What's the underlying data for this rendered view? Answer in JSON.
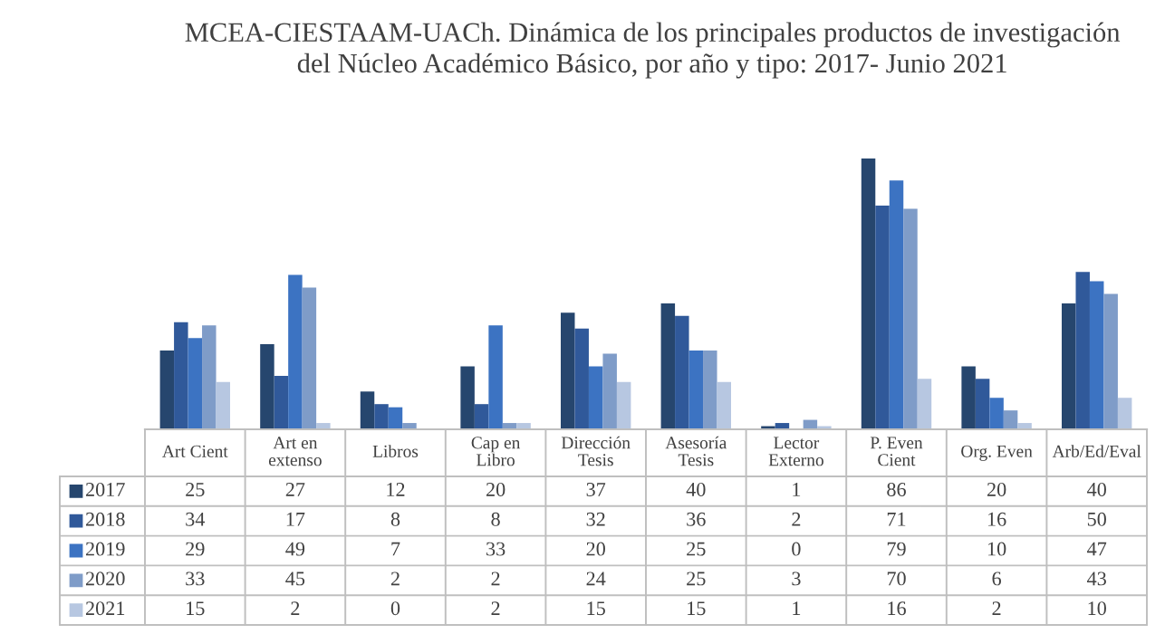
{
  "chart_data": {
    "type": "bar",
    "title": "MCEA-CIESTAAM-UACh. Dinámica de los principales productos de investigación\ndel Núcleo Académico Básico, por año y tipo: 2017- Junio 2021",
    "categories": [
      "Art Cient",
      "Art en extenso",
      "Libros",
      "Cap en Libro",
      "Dirección Tesis",
      "Asesoría Tesis",
      "Lector Externo",
      "P. Even Cient",
      "Org. Even",
      "Arb/Ed/Eval"
    ],
    "series": [
      {
        "name": "2017",
        "color": "#26466e",
        "values": [
          25,
          27,
          12,
          20,
          37,
          40,
          1,
          86,
          20,
          40
        ]
      },
      {
        "name": "2018",
        "color": "#30599a",
        "values": [
          34,
          17,
          8,
          8,
          32,
          36,
          2,
          71,
          16,
          50
        ]
      },
      {
        "name": "2019",
        "color": "#3c73c2",
        "values": [
          29,
          49,
          7,
          33,
          20,
          25,
          0,
          79,
          10,
          47
        ]
      },
      {
        "name": "2020",
        "color": "#7f9cc8",
        "values": [
          33,
          45,
          2,
          2,
          24,
          25,
          3,
          70,
          6,
          43
        ]
      },
      {
        "name": "2021",
        "color": "#b7c7e1",
        "values": [
          15,
          2,
          0,
          2,
          15,
          15,
          1,
          16,
          2,
          10
        ]
      }
    ],
    "data_labels": true,
    "grid": false,
    "legend": "bottom",
    "tick_labels": false
  }
}
